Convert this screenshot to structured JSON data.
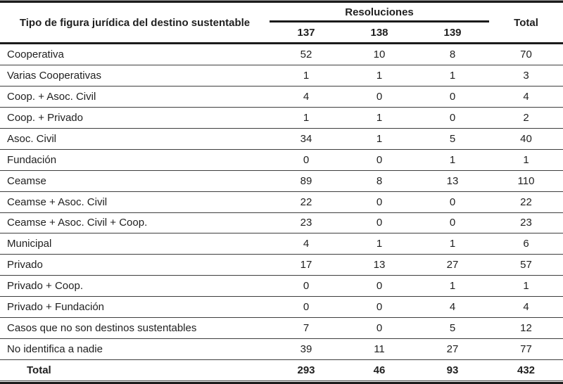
{
  "table": {
    "header": {
      "row_label": "Tipo de figura jurídica del destino sustentable",
      "group_label": "Resoluciones",
      "resolution_columns": [
        "137",
        "138",
        "139"
      ],
      "total_label": "Total"
    },
    "rows": [
      {
        "label": "Cooperativa",
        "values": [
          "52",
          "10",
          "8",
          "70"
        ]
      },
      {
        "label": "Varias Cooperativas",
        "values": [
          "1",
          "1",
          "1",
          "3"
        ]
      },
      {
        "label": "Coop. + Asoc. Civil",
        "values": [
          "4",
          "0",
          "0",
          "4"
        ]
      },
      {
        "label": "Coop. + Privado",
        "values": [
          "1",
          "1",
          "0",
          "2"
        ]
      },
      {
        "label": "Asoc. Civil",
        "values": [
          "34",
          "1",
          "5",
          "40"
        ]
      },
      {
        "label": "Fundación",
        "values": [
          "0",
          "0",
          "1",
          "1"
        ]
      },
      {
        "label": "Ceamse",
        "values": [
          "89",
          "8",
          "13",
          "110"
        ]
      },
      {
        "label": "Ceamse + Asoc. Civil",
        "values": [
          "22",
          "0",
          "0",
          "22"
        ]
      },
      {
        "label": "Ceamse + Asoc. Civil + Coop.",
        "values": [
          "23",
          "0",
          "0",
          "23"
        ]
      },
      {
        "label": "Municipal",
        "values": [
          "4",
          "1",
          "1",
          "6"
        ]
      },
      {
        "label": "Privado",
        "values": [
          "17",
          "13",
          "27",
          "57"
        ]
      },
      {
        "label": "Privado + Coop.",
        "values": [
          "0",
          "0",
          "1",
          "1"
        ]
      },
      {
        "label": "Privado + Fundación",
        "values": [
          "0",
          "0",
          "4",
          "4"
        ]
      },
      {
        "label": "Casos que no son destinos sustentables",
        "values": [
          "7",
          "0",
          "5",
          "12"
        ]
      },
      {
        "label": "No identifica a nadie",
        "values": [
          "39",
          "11",
          "27",
          "77"
        ]
      },
      {
        "label": "Total",
        "values": [
          "293",
          "46",
          "93",
          "432"
        ],
        "bold": true
      }
    ]
  },
  "colors": {
    "text": "#1f1f1f",
    "rule_thick": "#1b1b1b",
    "rule_thin": "#3d3d3d",
    "rule_gray": "#9c9c9c",
    "background": "#ffffff"
  }
}
